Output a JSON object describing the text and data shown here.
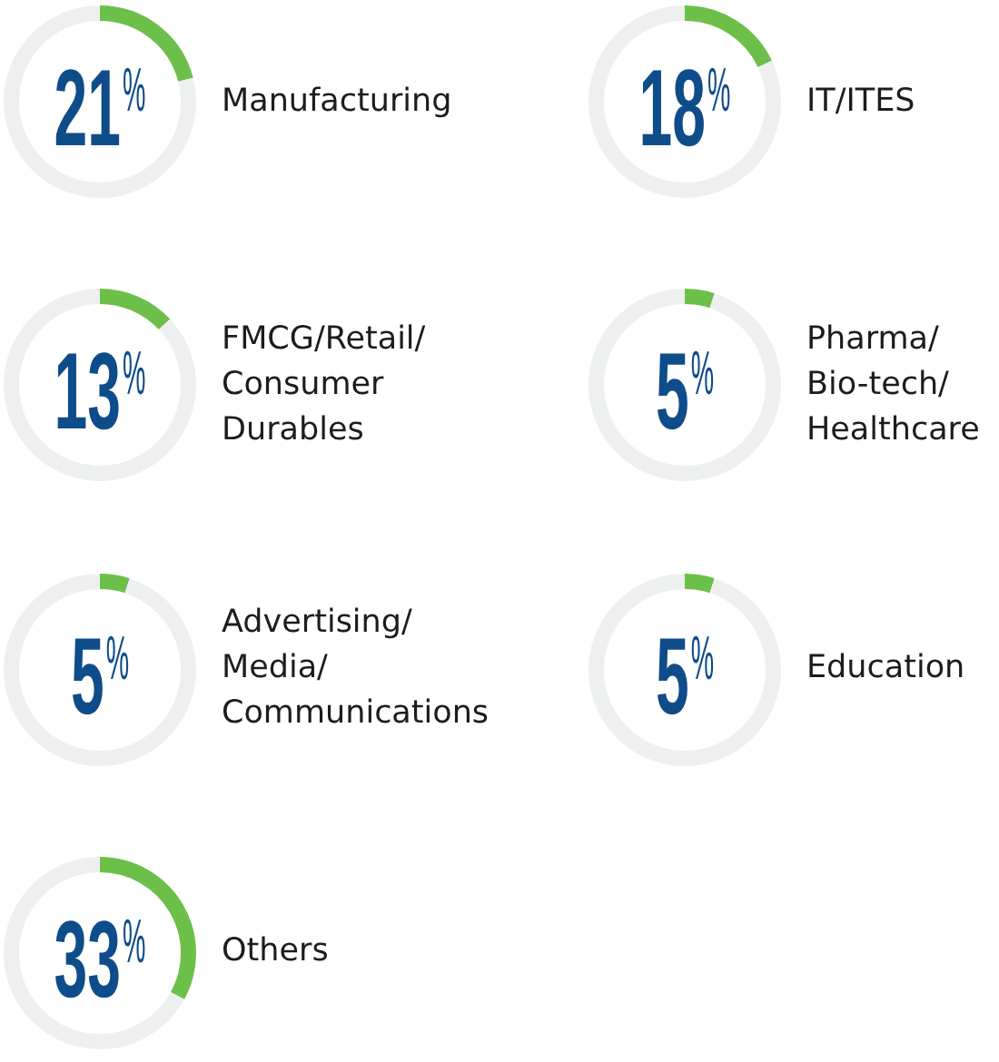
{
  "chart_data": [
    {
      "type": "donut",
      "title": "Manufacturing",
      "categories": [
        null,
        null
      ],
      "values": [
        21,
        79
      ],
      "colors": [
        "#6cc04a",
        "#eef0ef"
      ],
      "annotations": [
        "21%"
      ]
    },
    {
      "type": "donut",
      "title": "IT/ITES",
      "categories": [
        null,
        null
      ],
      "values": [
        18,
        82
      ],
      "colors": [
        "#6cc04a",
        "#eef0ef"
      ],
      "annotations": [
        "18%"
      ]
    },
    {
      "type": "donut",
      "title": "FMCG/Retail/\nConsumer\nDurables",
      "categories": [
        null,
        null
      ],
      "values": [
        13,
        87
      ],
      "colors": [
        "#6cc04a",
        "#eef0ef"
      ],
      "annotations": [
        "13%"
      ]
    },
    {
      "type": "donut",
      "title": "Pharma/\nBio-tech/\nHealthcare",
      "categories": [
        null,
        null
      ],
      "values": [
        5,
        95
      ],
      "colors": [
        "#6cc04a",
        "#eef0ef"
      ],
      "annotations": [
        "5%"
      ]
    },
    {
      "type": "donut",
      "title": "Advertising/\nMedia/\nCommunications",
      "categories": [
        null,
        null
      ],
      "values": [
        5,
        95
      ],
      "colors": [
        "#6cc04a",
        "#eef0ef"
      ],
      "annotations": [
        "5%"
      ]
    },
    {
      "type": "donut",
      "title": "Education",
      "categories": [
        null,
        null
      ],
      "values": [
        5,
        95
      ],
      "colors": [
        "#6cc04a",
        "#eef0ef"
      ],
      "annotations": [
        "5%"
      ]
    },
    {
      "type": "donut",
      "title": "Others",
      "categories": [
        null,
        null
      ],
      "values": [
        33,
        67
      ],
      "colors": [
        "#6cc04a",
        "#eef0ef"
      ],
      "annotations": [
        "33%"
      ]
    }
  ]
}
